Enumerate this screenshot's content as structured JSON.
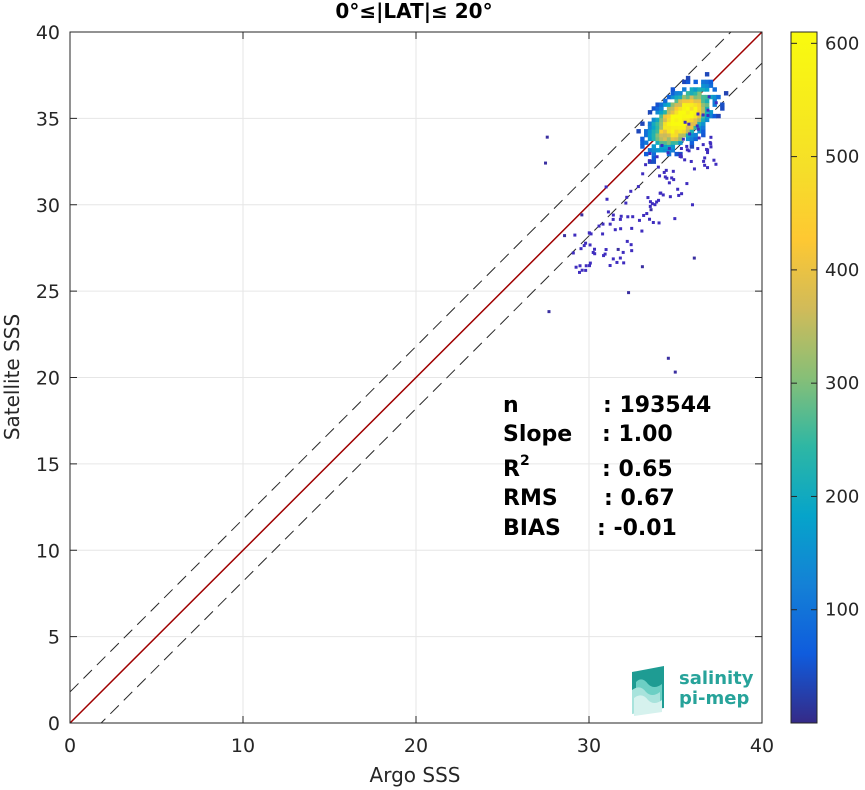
{
  "chart_data": {
    "type": "scatter",
    "title": "0°≤|LAT|≤ 20°",
    "xlabel": "Argo SSS",
    "ylabel": "Satellite SSS",
    "xlim": [
      0,
      40
    ],
    "ylim": [
      0,
      40
    ],
    "xticks": [
      0,
      10,
      20,
      30,
      40
    ],
    "yticks": [
      0,
      5,
      10,
      15,
      20,
      25,
      30,
      35,
      40
    ],
    "grid": true,
    "density": {
      "kind": "2d-histogram",
      "center": [
        35.2,
        34.9
      ],
      "core_spread": [
        1.1,
        1.3
      ],
      "peak_count": 600,
      "outliers": [
        [
          27.5,
          34
        ],
        [
          27.4,
          32.5
        ],
        [
          27.6,
          23.9
        ],
        [
          34.5,
          21.2
        ],
        [
          34.9,
          20.4
        ],
        [
          32.2,
          25
        ],
        [
          31.6,
          27.5
        ],
        [
          29.5,
          29.5
        ],
        [
          28.5,
          28.3
        ],
        [
          33.5,
          29.8
        ],
        [
          36,
          27
        ],
        [
          33,
          26.5
        ]
      ]
    },
    "lines": [
      {
        "name": "1:1",
        "style": "solid",
        "color": "#a00000",
        "intercept": 0
      },
      {
        "name": "+offset",
        "style": "dashed",
        "color": "#262626",
        "intercept": 1.8
      },
      {
        "name": "-offset",
        "style": "dashed",
        "color": "#262626",
        "intercept": -1.8
      }
    ],
    "colorbar": {
      "min": 0,
      "max": 610,
      "ticks": [
        100,
        200,
        300,
        400,
        500,
        600
      ],
      "colormap": "parula"
    },
    "stats": {
      "n": {
        "label": "n",
        "value": ": 193544"
      },
      "slope": {
        "label": "Slope",
        "value": ": 1.00"
      },
      "r2": {
        "label": "R",
        "sup": "2",
        "value": ": 0.65"
      },
      "rms": {
        "label": "RMS",
        "value": ": 0.67"
      },
      "bias": {
        "label": "BIAS",
        "value": ": -0.01"
      }
    }
  },
  "logo": {
    "line1": "salinity",
    "line2": "pi-mep"
  },
  "colors": {
    "one_to_one": "#a00000",
    "dashed": "#262626",
    "logo": "#27a39a"
  }
}
